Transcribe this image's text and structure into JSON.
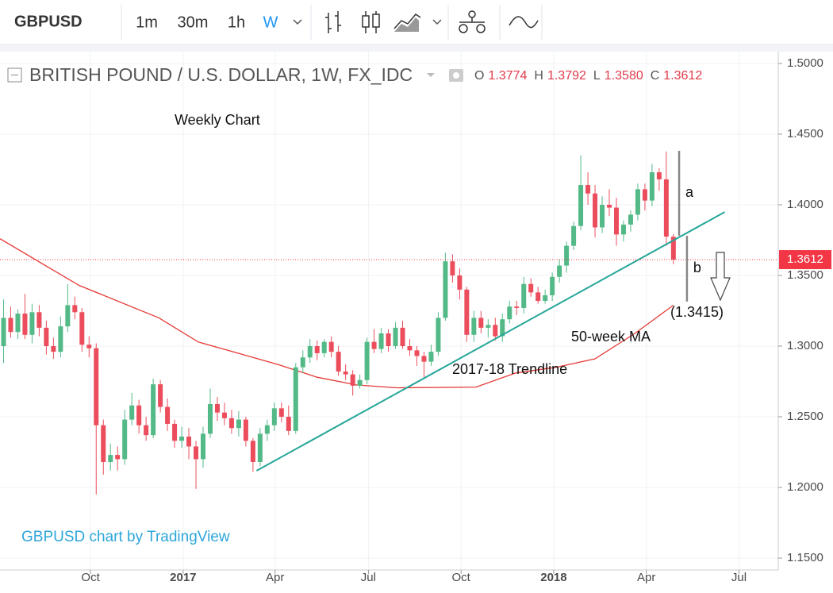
{
  "toolbar": {
    "symbol": "GBPUSD",
    "intervals": [
      "1m",
      "30m",
      "1h",
      "W"
    ]
  },
  "chart_data": {
    "type": "candlestick",
    "title": "BRITISH POUND / U.S. DOLLAR, 1W, FX_IDC",
    "ohlc_legend": [
      {
        "label": "O",
        "value": "1.3774"
      },
      {
        "label": "H",
        "value": "1.3792"
      },
      {
        "label": "L",
        "value": "1.3580"
      },
      {
        "label": "C",
        "value": "1.3612"
      }
    ],
    "subtitle": "Weekly Chart",
    "attribution": "GBPUSD chart by TradingView",
    "xlim": [
      -0.5,
      108.6
    ],
    "xticks": [
      {
        "value": 12.2,
        "label": "Oct"
      },
      {
        "value": 25.2,
        "label": "2017"
      },
      {
        "value": 38.1,
        "label": "Apr"
      },
      {
        "value": 51.2,
        "label": "Jul"
      },
      {
        "value": 64.2,
        "label": "Oct"
      },
      {
        "value": 77.2,
        "label": "2018"
      },
      {
        "value": 90.2,
        "label": "Apr"
      },
      {
        "value": 103.2,
        "label": "Jul"
      }
    ],
    "ylim": [
      1.1416,
      1.5084
    ],
    "yticks": [
      {
        "value": 1.15,
        "label": "1.1500"
      },
      {
        "value": 1.2,
        "label": "1.2000"
      },
      {
        "value": 1.25,
        "label": "1.2500"
      },
      {
        "value": 1.3,
        "label": "1.3000"
      },
      {
        "value": 1.35,
        "label": "1.3500"
      },
      {
        "value": 1.4,
        "label": "1.4000"
      },
      {
        "value": 1.45,
        "label": "1.4500"
      },
      {
        "value": 1.5,
        "label": "1.5000"
      }
    ],
    "grid": true,
    "candles": {
      "up_color": "#53b987",
      "down_color": "#eb4d5c",
      "open": [
        1.3,
        1.32,
        1.31,
        1.323,
        1.308,
        1.324,
        1.313,
        1.3,
        1.296,
        1.314,
        1.329,
        1.324,
        1.301,
        1.2985,
        1.244,
        1.218,
        1.223,
        1.22,
        1.248,
        1.258,
        1.244,
        1.237,
        1.273,
        1.257,
        1.245,
        1.233,
        1.236,
        1.229,
        1.22,
        1.238,
        1.259,
        1.253,
        1.249,
        1.242,
        1.248,
        1.233,
        1.218,
        1.238,
        1.244,
        1.256,
        1.25,
        1.24,
        1.285,
        1.292,
        1.3,
        1.295,
        1.303,
        1.296,
        1.282,
        1.28,
        1.272,
        1.276,
        1.303,
        1.298,
        1.309,
        1.3,
        1.313,
        1.3,
        1.297,
        1.293,
        1.289,
        1.296,
        1.32,
        1.36,
        1.35,
        1.34,
        1.308,
        1.32,
        1.313,
        1.315,
        1.307,
        1.319,
        1.328,
        1.327,
        1.344,
        1.338,
        1.332,
        1.336,
        1.349,
        1.357,
        1.371,
        1.385,
        1.414,
        1.408,
        1.384,
        1.4,
        1.398,
        1.379,
        1.386,
        1.393,
        1.411,
        1.403,
        1.423,
        1.418,
        1.3774
      ],
      "high": [
        1.333,
        1.328,
        1.326,
        1.337,
        1.33,
        1.329,
        1.318,
        1.306,
        1.321,
        1.344,
        1.335,
        1.327,
        1.307,
        1.302,
        1.248,
        1.231,
        1.229,
        1.255,
        1.267,
        1.262,
        1.25,
        1.277,
        1.276,
        1.263,
        1.248,
        1.243,
        1.242,
        1.233,
        1.243,
        1.27,
        1.264,
        1.26,
        1.255,
        1.254,
        1.25,
        1.235,
        1.242,
        1.248,
        1.26,
        1.26,
        1.258,
        1.288,
        1.297,
        1.305,
        1.304,
        1.305,
        1.307,
        1.3,
        1.287,
        1.283,
        1.28,
        1.306,
        1.312,
        1.313,
        1.312,
        1.317,
        1.318,
        1.305,
        1.3,
        1.296,
        1.301,
        1.324,
        1.366,
        1.365,
        1.355,
        1.342,
        1.325,
        1.325,
        1.319,
        1.32,
        1.323,
        1.332,
        1.332,
        1.349,
        1.348,
        1.342,
        1.34,
        1.352,
        1.361,
        1.374,
        1.388,
        1.435,
        1.423,
        1.414,
        1.406,
        1.411,
        1.405,
        1.389,
        1.396,
        1.415,
        1.415,
        1.429,
        1.426,
        1.4377,
        1.3792
      ],
      "low": [
        1.288,
        1.306,
        1.305,
        1.305,
        1.302,
        1.307,
        1.294,
        1.291,
        1.292,
        1.31,
        1.319,
        1.296,
        1.292,
        1.195,
        1.209,
        1.212,
        1.212,
        1.216,
        1.244,
        1.238,
        1.233,
        1.235,
        1.253,
        1.24,
        1.228,
        1.228,
        1.22,
        1.199,
        1.214,
        1.235,
        1.247,
        1.244,
        1.238,
        1.236,
        1.229,
        1.211,
        1.215,
        1.233,
        1.24,
        1.246,
        1.237,
        1.238,
        1.281,
        1.288,
        1.29,
        1.292,
        1.292,
        1.279,
        1.276,
        1.265,
        1.27,
        1.273,
        1.295,
        1.295,
        1.296,
        1.298,
        1.298,
        1.293,
        1.286,
        1.278,
        1.286,
        1.293,
        1.318,
        1.345,
        1.333,
        1.303,
        1.303,
        1.309,
        1.306,
        1.304,
        1.303,
        1.316,
        1.322,
        1.323,
        1.335,
        1.33,
        1.33,
        1.332,
        1.345,
        1.352,
        1.368,
        1.382,
        1.4,
        1.377,
        1.38,
        1.392,
        1.371,
        1.374,
        1.381,
        1.389,
        1.396,
        1.399,
        1.41,
        1.371,
        1.358
      ],
      "close": [
        1.32,
        1.31,
        1.323,
        1.308,
        1.324,
        1.313,
        1.3,
        1.296,
        1.314,
        1.329,
        1.324,
        1.301,
        1.2985,
        1.244,
        1.218,
        1.223,
        1.22,
        1.248,
        1.258,
        1.244,
        1.237,
        1.273,
        1.257,
        1.245,
        1.233,
        1.236,
        1.229,
        1.22,
        1.238,
        1.259,
        1.253,
        1.249,
        1.242,
        1.248,
        1.233,
        1.218,
        1.238,
        1.244,
        1.256,
        1.25,
        1.24,
        1.285,
        1.292,
        1.3,
        1.295,
        1.303,
        1.296,
        1.282,
        1.28,
        1.272,
        1.276,
        1.303,
        1.298,
        1.309,
        1.3,
        1.313,
        1.3,
        1.297,
        1.293,
        1.289,
        1.296,
        1.32,
        1.36,
        1.35,
        1.34,
        1.308,
        1.32,
        1.313,
        1.315,
        1.307,
        1.319,
        1.328,
        1.327,
        1.344,
        1.338,
        1.332,
        1.336,
        1.349,
        1.357,
        1.371,
        1.385,
        1.414,
        1.408,
        1.384,
        1.4,
        1.398,
        1.379,
        1.386,
        1.393,
        1.411,
        1.403,
        1.423,
        1.418,
        1.3775,
        1.3612
      ]
    },
    "moving_average": {
      "name": "50-week MA",
      "color": "#e53935",
      "x": [
        -0.5,
        10.6,
        21.8,
        27.3,
        32.9,
        38.5,
        44.0,
        49.6,
        55.2,
        66.3,
        71.9,
        77.5,
        83.0,
        88.6,
        94
      ],
      "values": [
        1.376,
        1.343,
        1.32,
        1.303,
        1.295,
        1.287,
        1.278,
        1.2725,
        1.2705,
        1.271,
        1.281,
        1.285,
        1.291,
        1.309,
        1.329
      ]
    },
    "trendline": {
      "name": "2017-18 Trendline",
      "color": "#26a69a",
      "x": [
        35.5,
        101.2
      ],
      "values": [
        1.2118,
        1.3949
      ]
    },
    "last_price": {
      "value": 1.3612,
      "label": "1.3612",
      "color": "#f23645"
    },
    "annotations": [
      {
        "text": "a",
        "x": 94.8,
        "from": 1.4382,
        "to": 1.3781
      },
      {
        "text": "b",
        "x": 95.9,
        "from": 1.3781,
        "to": 1.3315
      }
    ],
    "target": {
      "label": "(1.3415)"
    }
  }
}
